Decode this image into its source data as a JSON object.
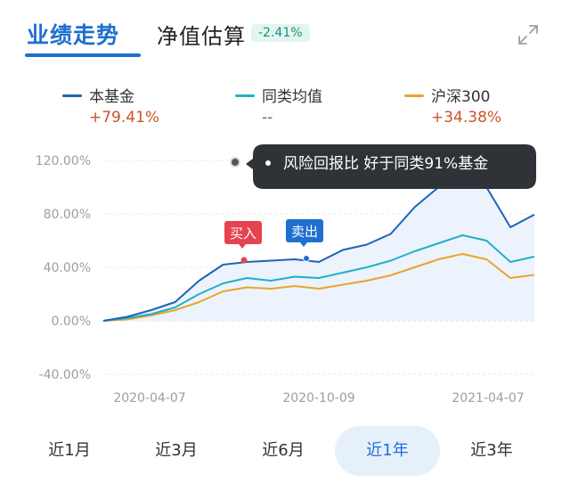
{
  "tabs": {
    "performance": "业绩走势",
    "nav_estimate": "净值估算",
    "nav_change": "-2.41%"
  },
  "legend": [
    {
      "name": "本基金",
      "value": "+79.41%",
      "color": "#1e63b6",
      "value_color": "#c9542d"
    },
    {
      "name": "同类均值",
      "value": "--",
      "color": "#1fb0c8",
      "value_color": "#666666"
    },
    {
      "name": "沪深300",
      "value": "+34.38%",
      "color": "#e8a52b",
      "value_color": "#c9542d"
    }
  ],
  "tooltip": {
    "text": "风险回报比 好于同类91%基金"
  },
  "markers": {
    "buy": "买入",
    "sell": "卖出"
  },
  "ranges": [
    "近1月",
    "近3月",
    "近6月",
    "近1年",
    "近3年"
  ],
  "active_range": "近1年",
  "icons": {
    "expand": "expand-icon"
  },
  "chart_data": {
    "type": "line",
    "y_ticks": [
      "120.00%",
      "80.00%",
      "40.00%",
      "0.00%",
      "-40.00%"
    ],
    "ylim": [
      -40,
      120
    ],
    "x_ticks": [
      "2020-04-07",
      "2020-10-09",
      "2021-04-07"
    ],
    "x": [
      "2020-03-31",
      "2020-04-21",
      "2020-05-12",
      "2020-06-02",
      "2020-06-23",
      "2020-07-14",
      "2020-08-04",
      "2020-08-25",
      "2020-09-15",
      "2020-10-06",
      "2020-10-27",
      "2020-11-17",
      "2020-12-08",
      "2020-12-29",
      "2021-01-19",
      "2021-02-09",
      "2021-03-02",
      "2021-03-23",
      "2021-04-13"
    ],
    "series": [
      {
        "name": "本基金",
        "color": "#1e63b6",
        "values": [
          0,
          3,
          8,
          14,
          30,
          42,
          44,
          45,
          46,
          44,
          53,
          57,
          65,
          85,
          100,
          110,
          100,
          70,
          79.41
        ]
      },
      {
        "name": "同类均值",
        "color": "#1fb0c8",
        "values": [
          0,
          2,
          5,
          10,
          20,
          28,
          32,
          30,
          33,
          32,
          36,
          40,
          45,
          52,
          58,
          64,
          60,
          44,
          48
        ]
      },
      {
        "name": "沪深300",
        "color": "#e8a52b",
        "values": [
          0,
          1,
          4,
          8,
          14,
          22,
          25,
          24,
          26,
          24,
          27,
          30,
          34,
          40,
          46,
          50,
          46,
          32,
          34.38
        ]
      }
    ],
    "grid": true
  }
}
